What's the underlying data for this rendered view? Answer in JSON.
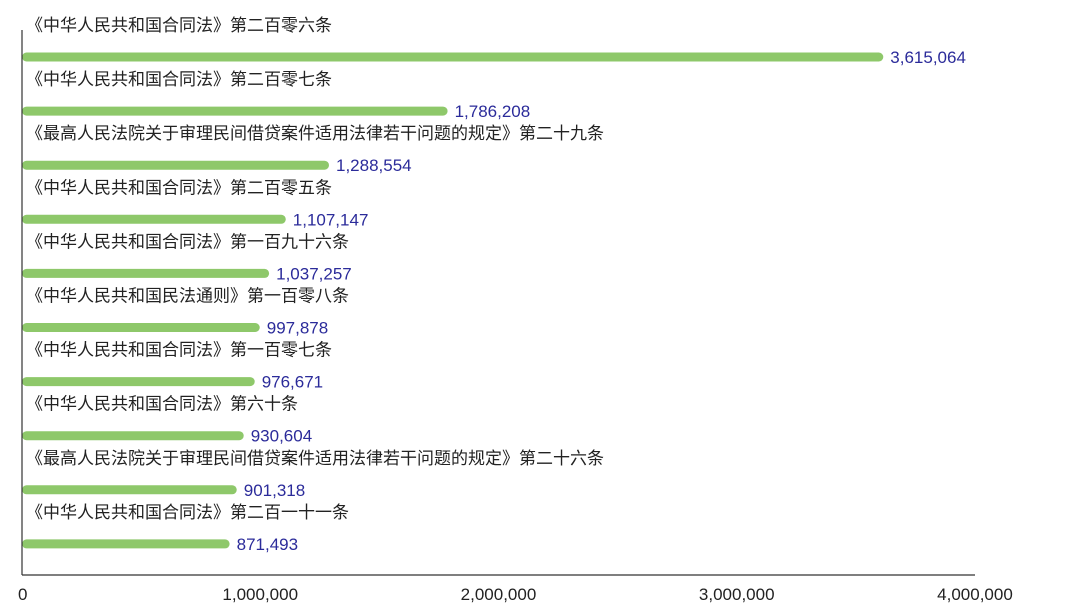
{
  "chart_data": {
    "type": "bar",
    "orientation": "horizontal",
    "title": "",
    "xlabel": "",
    "ylabel": "",
    "xlim": [
      0,
      4000000
    ],
    "x_ticks": [
      0,
      1000000,
      2000000,
      3000000,
      4000000
    ],
    "x_tick_labels": [
      "0",
      "1,000,000",
      "2,000,000",
      "3,000,000",
      "4,000,000"
    ],
    "grid": false,
    "legend": "none",
    "bar_color": "#8ec86a",
    "value_label_color": "#2b2b9a",
    "axis_color": "#333333",
    "categories": [
      "《中华人民共和国合同法》第二百零六条",
      "《中华人民共和国合同法》第二百零七条",
      "《最高人民法院关于审理民间借贷案件适用法律若干问题的规定》第二十九条",
      "《中华人民共和国合同法》第二百零五条",
      "《中华人民共和国合同法》第一百九十六条",
      "《中华人民共和国民法通则》第一百零八条",
      "《中华人民共和国合同法》第一百零七条",
      "《中华人民共和国合同法》第六十条",
      "《最高人民法院关于审理民间借贷案件适用法律若干问题的规定》第二十六条",
      "《中华人民共和国合同法》第二百一十一条"
    ],
    "values": [
      3615064,
      1786208,
      1288554,
      1107147,
      1037257,
      997878,
      976671,
      930604,
      901318,
      871493
    ],
    "value_labels": [
      "3,615,064",
      "1,786,208",
      "1,288,554",
      "1,107,147",
      "1,037,257",
      "997,878",
      "976,671",
      "930,604",
      "901,318",
      "871,493"
    ]
  }
}
